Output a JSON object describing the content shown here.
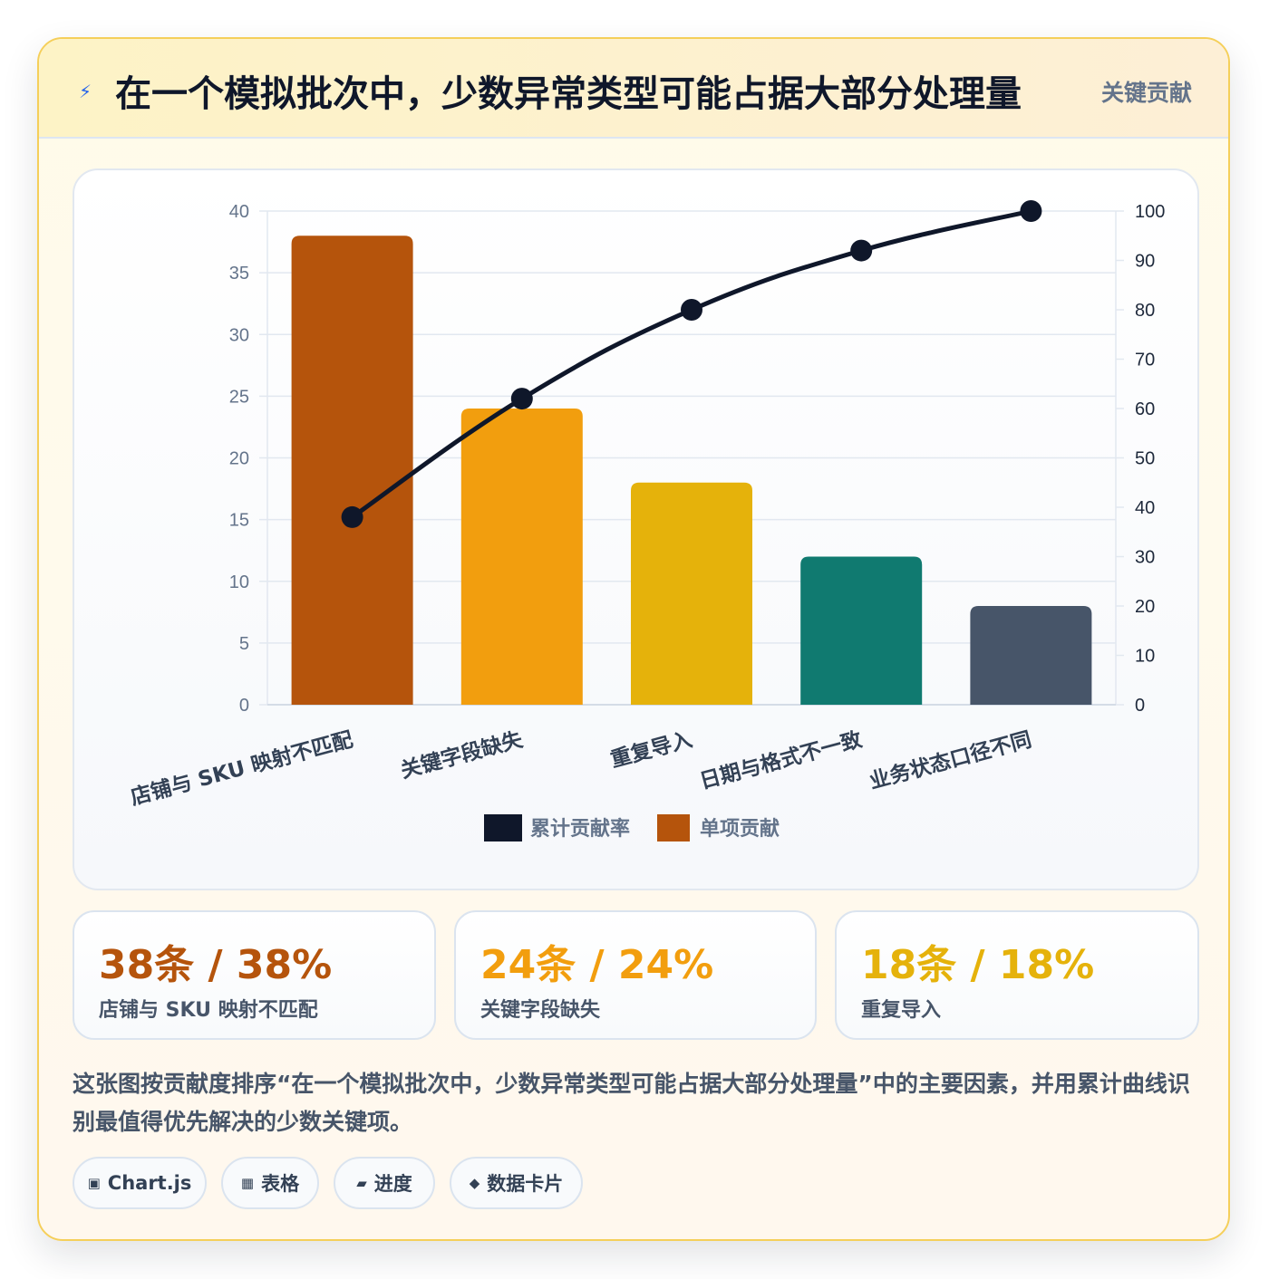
{
  "header": {
    "icon": "lightning-icon",
    "title": "在一个模拟批次中，少数异常类型可能占据大部分处理量",
    "badge": "关键贡献"
  },
  "chart_data": {
    "type": "bar",
    "categories": [
      "店铺与 SKU 映射不匹配",
      "关键字段缺失",
      "重复导入",
      "日期与格式不一致",
      "业务状态口径不同"
    ],
    "series": [
      {
        "name": "单项贡献",
        "type": "bar",
        "axis": "left",
        "values": [
          38,
          24,
          18,
          12,
          8
        ],
        "colors": [
          "#b5540c",
          "#f29e0e",
          "#e5b20b",
          "#107a70",
          "#475569"
        ]
      },
      {
        "name": "累计贡献率",
        "type": "line",
        "axis": "right",
        "values": [
          38,
          62,
          80,
          92,
          100
        ],
        "color": "#0f172a"
      }
    ],
    "ylim_left": [
      0,
      40
    ],
    "yticks_left": [
      0,
      5,
      10,
      15,
      20,
      25,
      30,
      35,
      40
    ],
    "ylim_right": [
      0,
      100
    ],
    "yticks_right": [
      0,
      10,
      20,
      30,
      40,
      50,
      60,
      70,
      80,
      90,
      100
    ],
    "grid": true,
    "legend_position": "bottom"
  },
  "stats": [
    {
      "value": "38条 / 38%",
      "label": "店铺与 SKU 映射不匹配",
      "color": "#b5540c"
    },
    {
      "value": "24条 / 24%",
      "label": "关键字段缺失",
      "color": "#f29e0e"
    },
    {
      "value": "18条 / 18%",
      "label": "重复导入",
      "color": "#e5b20b"
    }
  ],
  "description": "这张图按贡献度排序“在一个模拟批次中，少数异常类型可能占据大部分处理量”中的主要因素，并用累计曲线识别最值得优先解决的少数关键项。",
  "tags": [
    {
      "icon": "chip-icon",
      "glyph": "▣",
      "label": "Chart.js"
    },
    {
      "icon": "table-icon",
      "glyph": "▦",
      "label": "表格"
    },
    {
      "icon": "progress-icon",
      "glyph": "▰",
      "label": "进度"
    },
    {
      "icon": "diamond-icon",
      "glyph": "◆",
      "label": "数据卡片"
    }
  ]
}
